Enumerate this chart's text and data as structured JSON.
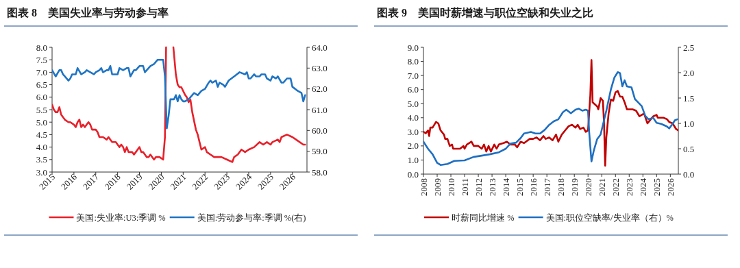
{
  "chart_data": [
    {
      "type": "line",
      "title": "图表 8　美国失业率与劳动参与率",
      "legend": "bottom",
      "xlim": [
        "2015-01",
        "2026-09"
      ],
      "xticks": [
        {
          "value": "2015",
          "label": "2015"
        },
        {
          "value": "2016",
          "label": "2016"
        },
        {
          "value": "2017",
          "label": "2017"
        },
        {
          "value": "2018",
          "label": "2018"
        },
        {
          "value": "2019",
          "label": "2019"
        },
        {
          "value": "2020",
          "label": "2020"
        },
        {
          "value": "2021",
          "label": "2021"
        },
        {
          "value": "2022",
          "label": "2022"
        },
        {
          "value": "2023",
          "label": "2023"
        },
        {
          "value": "2024",
          "label": "2024"
        },
        {
          "value": "2025",
          "label": "2025"
        },
        {
          "value": "2026",
          "label": "2026"
        }
      ],
      "ylim": [
        3,
        8
      ],
      "yticks": [
        {
          "value": 3,
          "label": "3.0"
        },
        {
          "value": 3.5,
          "label": "3.5"
        },
        {
          "value": 4,
          "label": "4.0"
        },
        {
          "value": 4.5,
          "label": "4.5"
        },
        {
          "value": 5,
          "label": "5.0"
        },
        {
          "value": 5.5,
          "label": "5.5"
        },
        {
          "value": 6,
          "label": "6.0"
        },
        {
          "value": 6.5,
          "label": "6.5"
        },
        {
          "value": 7,
          "label": "7.0"
        },
        {
          "value": 7.5,
          "label": "7.5"
        },
        {
          "value": 8,
          "label": "8.0"
        }
      ],
      "y2lim": [
        58,
        64
      ],
      "y2ticks": [
        {
          "value": 58,
          "label": "58.0"
        },
        {
          "value": 59,
          "label": "59.0"
        },
        {
          "value": 60,
          "label": "60.0"
        },
        {
          "value": 61,
          "label": "61.0"
        },
        {
          "value": 62,
          "label": "62.0"
        },
        {
          "value": 63,
          "label": "63.0"
        },
        {
          "value": 64,
          "label": "64.0"
        }
      ],
      "series": [
        {
          "name": "美国:失业率:U3:季调 %",
          "color": "#e8202a",
          "x": [
            "2015-01",
            "2015-02",
            "2015-03",
            "2015-04",
            "2015-05",
            "2015-06",
            "2015-08",
            "2015-10",
            "2015-11",
            "2016-01",
            "2016-02",
            "2016-03",
            "2016-04",
            "2016-05",
            "2016-06",
            "2016-07",
            "2016-08",
            "2016-09",
            "2016-10",
            "2016-11",
            "2017-01",
            "2017-02",
            "2017-03",
            "2017-05",
            "2017-07",
            "2017-08",
            "2017-09",
            "2017-10",
            "2017-12",
            "2018-01",
            "2018-02",
            "2018-03",
            "2018-04",
            "2018-05",
            "2018-06",
            "2018-07",
            "2018-09",
            "2018-10",
            "2018-11",
            "2018-12",
            "2019-01",
            "2019-02",
            "2019-03",
            "2019-04",
            "2019-05",
            "2019-06",
            "2019-07",
            "2019-08",
            "2019-09",
            "2019-10",
            "2019-12",
            "2020-02",
            "2020-03",
            "2020-03-20",
            "2020-05",
            "2020-07-20",
            "2020-09",
            "2020-10",
            "2020-11",
            "2020-12",
            "2021-02",
            "2021-03",
            "2021-04",
            "2021-05",
            "2021-06",
            "2021-08",
            "2021-09",
            "2021-10",
            "2021-11",
            "2022-01",
            "2022-02",
            "2022-04",
            "2022-06",
            "2022-08",
            "2022-10",
            "2023-01",
            "2023-04",
            "2023-05",
            "2023-07",
            "2023-09",
            "2023-11",
            "2024-01",
            "2024-04",
            "2024-07",
            "2024-09",
            "2024-11",
            "2025-01",
            "2025-02",
            "2025-05",
            "2025-06",
            "2025-07",
            "2025-10",
            "2026-01",
            "2026-03",
            "2026-07",
            "2026-08"
          ],
          "values": [
            5.7,
            5.5,
            5.4,
            5.4,
            5.6,
            5.3,
            5.1,
            5.0,
            5.0,
            4.9,
            4.8,
            5.0,
            5.1,
            4.8,
            4.9,
            4.8,
            4.9,
            5.0,
            4.9,
            4.7,
            4.7,
            4.6,
            4.4,
            4.4,
            4.3,
            4.4,
            4.3,
            4.2,
            4.2,
            4.1,
            4.0,
            4.1,
            4.0,
            3.8,
            4.0,
            3.8,
            3.8,
            3.7,
            3.8,
            3.9,
            4.0,
            3.8,
            3.8,
            3.7,
            3.6,
            3.6,
            3.7,
            3.6,
            3.5,
            3.6,
            3.6,
            3.5,
            4.4,
            8.0,
            null,
            8.0,
            6.9,
            6.5,
            6.4,
            6.4,
            6.1,
            6.0,
            5.8,
            5.9,
            5.4,
            4.7,
            4.5,
            4.2,
            3.9,
            4.0,
            3.8,
            3.7,
            3.6,
            3.6,
            3.6,
            3.5,
            3.4,
            3.6,
            3.7,
            3.9,
            3.8,
            3.9,
            4.0,
            4.2,
            4.1,
            4.2,
            4.1,
            4.2,
            4.3,
            4.2,
            4.4,
            4.5,
            4.4,
            4.3,
            4.1,
            4.1
          ]
        },
        {
          "name": "美国:劳动参与率:季调 %(右)",
          "color": "#1f74c4",
          "axis": "y2",
          "x": [
            "2015-01",
            "2015-03",
            "2015-05",
            "2015-06",
            "2015-07",
            "2015-08",
            "2015-10",
            "2015-11",
            "2015-12",
            "2016-02",
            "2016-03",
            "2016-05",
            "2016-07",
            "2016-08",
            "2016-10",
            "2016-12",
            "2017-01",
            "2017-03",
            "2017-04",
            "2017-05",
            "2017-07",
            "2017-08",
            "2017-09",
            "2017-10",
            "2018-01",
            "2018-02",
            "2018-04",
            "2018-06",
            "2018-07",
            "2018-08",
            "2018-10",
            "2018-11",
            "2019-01",
            "2019-03",
            "2019-04",
            "2019-06",
            "2019-07",
            "2019-09",
            "2019-11",
            "2020-02",
            "2020-03",
            "2020-04",
            "2020-05",
            "2020-06",
            "2020-08",
            "2020-09",
            "2020-10",
            "2020-11",
            "2020-12",
            "2021-01",
            "2021-02",
            "2021-04",
            "2021-05",
            "2021-07",
            "2021-09",
            "2021-11",
            "2022-01",
            "2022-03",
            "2022-04",
            "2022-05",
            "2022-07",
            "2022-08",
            "2022-09",
            "2022-11",
            "2022-12",
            "2023-02",
            "2023-05",
            "2023-08",
            "2023-11",
            "2023-12",
            "2024-01",
            "2024-02",
            "2024-04",
            "2024-05",
            "2024-07",
            "2024-08",
            "2024-10",
            "2024-11",
            "2025-01",
            "2025-02",
            "2025-04",
            "2025-05",
            "2025-07",
            "2025-08",
            "2025-10",
            "2025-12",
            "2026-01",
            "2026-04",
            "2026-06",
            "2026-07",
            "2026-08"
          ],
          "values": [
            62.9,
            62.6,
            62.9,
            62.9,
            62.7,
            62.6,
            62.4,
            62.5,
            62.7,
            62.7,
            63.0,
            62.7,
            62.8,
            62.9,
            62.8,
            62.7,
            62.8,
            62.9,
            63.0,
            62.8,
            62.9,
            62.9,
            63.1,
            62.7,
            62.7,
            63.0,
            62.9,
            63.0,
            63.0,
            62.6,
            62.9,
            62.9,
            63.1,
            63.1,
            62.8,
            63.0,
            63.1,
            63.2,
            63.4,
            63.4,
            62.6,
            60.1,
            60.7,
            61.5,
            61.5,
            61.7,
            61.4,
            61.7,
            61.5,
            61.4,
            61.4,
            61.5,
            61.6,
            61.8,
            61.7,
            61.9,
            62.0,
            62.3,
            62.4,
            62.3,
            62.4,
            62.1,
            62.3,
            62.2,
            62.1,
            62.4,
            62.6,
            62.8,
            62.7,
            62.8,
            62.5,
            62.5,
            62.7,
            62.6,
            62.6,
            62.7,
            62.7,
            62.5,
            62.4,
            62.6,
            62.5,
            62.6,
            62.3,
            62.3,
            62.5,
            62.5,
            62.1,
            61.9,
            61.8,
            61.4,
            61.7
          ]
        }
      ]
    },
    {
      "type": "line",
      "title": "图表 9　美国时薪增速与职位空缺和失业之比",
      "legend": "bottom",
      "xlim": [
        "2008-01",
        "2026-08"
      ],
      "xticks": [
        {
          "value": "2008",
          "label": "2008"
        },
        {
          "value": "2009",
          "label": "2009"
        },
        {
          "value": "2010",
          "label": "2010"
        },
        {
          "value": "2011",
          "label": "2011"
        },
        {
          "value": "2012",
          "label": "2012"
        },
        {
          "value": "2013",
          "label": "2013"
        },
        {
          "value": "2014",
          "label": "2014"
        },
        {
          "value": "2015",
          "label": "2015"
        },
        {
          "value": "2016",
          "label": "2016"
        },
        {
          "value": "2017",
          "label": "2017"
        },
        {
          "value": "2018",
          "label": "2018"
        },
        {
          "value": "2019",
          "label": "2019"
        },
        {
          "value": "2020",
          "label": "2020"
        },
        {
          "value": "2021",
          "label": "2021"
        },
        {
          "value": "2022",
          "label": "2022"
        },
        {
          "value": "2023",
          "label": "2023"
        },
        {
          "value": "2024",
          "label": "2024"
        },
        {
          "value": "2025",
          "label": "2025"
        },
        {
          "value": "2026",
          "label": "2026"
        }
      ],
      "ylim": [
        0,
        9
      ],
      "yticks": [
        {
          "value": 0,
          "label": "0.0"
        },
        {
          "value": 1,
          "label": "1.0"
        },
        {
          "value": 2,
          "label": "2.0"
        },
        {
          "value": 3,
          "label": "3.0"
        },
        {
          "value": 4,
          "label": "4.0"
        },
        {
          "value": 5,
          "label": "5.0"
        },
        {
          "value": 6,
          "label": "6.0"
        },
        {
          "value": 7,
          "label": "7.0"
        },
        {
          "value": 8,
          "label": "8.0"
        },
        {
          "value": 9,
          "label": "9.0"
        }
      ],
      "y2lim": [
        0,
        2.5
      ],
      "y2ticks": [
        {
          "value": 0,
          "label": "0.0"
        },
        {
          "value": 0.5,
          "label": "0.5"
        },
        {
          "value": 1,
          "label": "1.0"
        },
        {
          "value": 1.5,
          "label": "1.5"
        },
        {
          "value": 2,
          "label": "2.0"
        },
        {
          "value": 2.5,
          "label": "2.5"
        }
      ],
      "series": [
        {
          "name": "时薪同比增速 %",
          "color": "#c00000",
          "x": [
            "2008-01",
            "2008-03",
            "2008-05",
            "2008-06",
            "2008-07",
            "2008-09",
            "2008-12",
            "2009-02",
            "2009-04",
            "2009-07",
            "2009-08",
            "2009-10",
            "2009-12",
            "2010-02",
            "2010-03",
            "2010-09",
            "2010-12",
            "2011-01",
            "2011-03",
            "2011-07",
            "2011-09",
            "2012-01",
            "2012-04",
            "2012-06",
            "2012-08",
            "2012-10",
            "2012-12",
            "2013-03",
            "2013-05",
            "2013-07",
            "2013-11",
            "2014-02",
            "2014-05",
            "2014-09",
            "2014-11",
            "2015-02",
            "2015-05",
            "2015-10",
            "2016-01",
            "2016-04",
            "2016-07",
            "2016-10",
            "2016-12",
            "2017-03",
            "2017-06",
            "2017-09",
            "2017-11",
            "2018-02",
            "2018-05",
            "2018-08",
            "2018-11",
            "2019-02",
            "2019-04",
            "2019-06",
            "2019-09",
            "2019-11",
            "2020-01",
            "2020-03",
            "2020-04",
            "2020-05",
            "2020-09",
            "2020-10",
            "2020-12",
            "2021-02",
            "2021-03",
            "2021-04",
            "2021-05",
            "2021-07",
            "2021-09",
            "2021-11",
            "2022-01",
            "2022-03",
            "2022-05",
            "2022-07",
            "2022-09",
            "2022-11",
            "2023-04",
            "2023-07",
            "2023-10",
            "2024-02",
            "2024-05",
            "2024-08",
            "2024-10",
            "2025-01",
            "2025-02",
            "2025-07",
            "2025-10",
            "2025-12",
            "2026-03",
            "2026-06",
            "2026-08"
          ],
          "values": [
            3.0,
            2.9,
            3.1,
            2.7,
            3.3,
            3.3,
            3.7,
            3.6,
            3.1,
            2.8,
            2.5,
            2.5,
            2.0,
            2.1,
            1.8,
            1.8,
            2.0,
            1.8,
            2.1,
            2.3,
            2.0,
            2.0,
            1.8,
            2.1,
            1.6,
            2.0,
            1.6,
            2.1,
            1.8,
            2.1,
            2.2,
            2.3,
            2.1,
            2.1,
            1.9,
            2.3,
            2.2,
            2.5,
            2.5,
            2.6,
            2.4,
            2.7,
            2.5,
            2.6,
            2.4,
            2.8,
            2.3,
            2.8,
            3.1,
            3.4,
            3.5,
            3.3,
            3.5,
            3.2,
            3.3,
            3.0,
            3.1,
            5.6,
            8.1,
            5.1,
            4.8,
            4.6,
            5.4,
            5.2,
            3.6,
            0.6,
            2.6,
            4.3,
            5.3,
            5.2,
            5.8,
            5.9,
            5.5,
            5.5,
            5.1,
            4.6,
            4.6,
            4.5,
            4.1,
            4.3,
            3.6,
            3.9,
            4.1,
            4.2,
            4.0,
            4.0,
            3.9,
            3.7,
            3.6,
            3.2,
            3.1
          ]
        },
        {
          "name": "美国:职位空缺率/失业率（右）%",
          "color": "#1f6fc1",
          "axis": "y2",
          "x": [
            "2008-01",
            "2008-05",
            "2008-09",
            "2009-01",
            "2009-04",
            "2009-10",
            "2010-04",
            "2011-01",
            "2011-09",
            "2012-03",
            "2012-11",
            "2013-07",
            "2014-01",
            "2014-05",
            "2014-10",
            "2015-02",
            "2015-05",
            "2015-11",
            "2016-03",
            "2016-07",
            "2016-11",
            "2017-03",
            "2017-07",
            "2017-11",
            "2018-03",
            "2018-06",
            "2018-10",
            "2019-02",
            "2019-05",
            "2019-08",
            "2019-11",
            "2020-01",
            "2020-02",
            "2020-04",
            "2020-06",
            "2020-09",
            "2020-12",
            "2021-02",
            "2021-05",
            "2021-09",
            "2021-12",
            "2022-03",
            "2022-05",
            "2022-07",
            "2022-09",
            "2022-11",
            "2023-03",
            "2023-06",
            "2023-09",
            "2023-12",
            "2024-03",
            "2024-06",
            "2024-10",
            "2025-01",
            "2025-05",
            "2025-10",
            "2025-12",
            "2026-03",
            "2026-05",
            "2026-07"
          ],
          "values": [
            0.64,
            0.5,
            0.39,
            0.22,
            0.18,
            0.2,
            0.26,
            0.27,
            0.34,
            0.36,
            0.39,
            0.43,
            0.5,
            0.6,
            0.62,
            0.71,
            0.8,
            0.83,
            0.8,
            0.8,
            0.87,
            0.97,
            1.04,
            1.08,
            1.22,
            1.27,
            1.2,
            1.27,
            1.29,
            1.25,
            1.27,
            1.25,
            0.83,
            0.25,
            0.46,
            0.69,
            0.78,
            0.97,
            1.25,
            1.67,
            1.9,
            2.01,
            1.99,
            1.73,
            1.85,
            1.73,
            1.71,
            1.48,
            1.41,
            1.34,
            1.15,
            1.08,
            1.11,
            1.01,
            0.99,
            0.94,
            0.9,
            0.99,
            1.06,
            1.08
          ]
        }
      ]
    }
  ]
}
